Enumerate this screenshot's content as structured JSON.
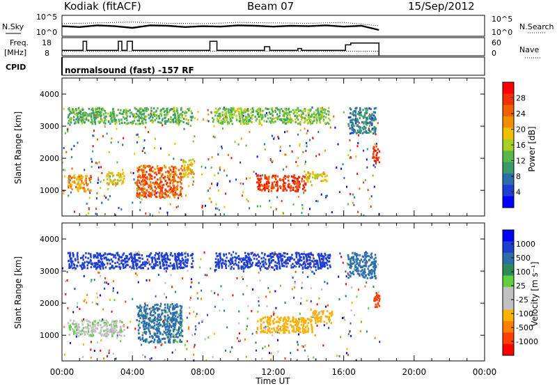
{
  "header": {
    "station": "Kodiak (fitACF)",
    "beam": "Beam 07",
    "date": "15/Sep/2012"
  },
  "summary_panels": {
    "nsky_label": "N.Sky",
    "nsky_ticks": [
      "10^5",
      "10^0"
    ],
    "nsearch_label": "N.Search",
    "nsearch_ticks": [
      "10^5",
      "10^0"
    ],
    "freq_label": "Freq.",
    "freq_unit": "[MHz]",
    "freq_ticks": [
      "18",
      "8"
    ],
    "nave_label": "Nave",
    "nave_ticks": [
      "60",
      "0"
    ],
    "cpid_label": "CPID",
    "cpid_text": "normalsound (fast) -157 RF"
  },
  "colors": {
    "power_scale": [
      "#0000ff",
      "#1f3fd0",
      "#2b6eaa",
      "#3a9a6a",
      "#5ab84a",
      "#a8d020",
      "#f0c000",
      "#f09000",
      "#f06000",
      "#f03000",
      "#ff0000"
    ],
    "velocity_scale": [
      "#ff0000",
      "#ff4000",
      "#ff8000",
      "#ffb000",
      "#c0c0c0",
      "#c0c0c0",
      "#60d040",
      "#2e8b57",
      "#2b6eaa",
      "#1f3fd0",
      "#0000ff"
    ]
  },
  "chart_data": [
    {
      "type": "line",
      "name": "nsky-nsearch-timeseries",
      "series": [
        {
          "name": "N.Sky",
          "style": "solid",
          "x_hours": [
            0.0,
            1.0,
            2.0,
            3.0,
            4.0,
            5.0,
            6.0,
            7.0,
            8.0,
            9.0,
            10.0,
            11.0,
            12.0,
            13.0,
            14.0,
            15.0,
            16.0,
            17.0,
            18.0
          ],
          "values_log10": [
            2.4,
            2.2,
            2.6,
            2.4,
            2.0,
            2.6,
            2.5,
            2.2,
            2.4,
            2.3,
            2.6,
            2.5,
            2.3,
            2.5,
            2.4,
            2.6,
            2.3,
            2.5,
            1.5
          ]
        },
        {
          "name": "N.Search",
          "style": "dotted",
          "x_hours": [
            0.0,
            2.0,
            4.0,
            6.0,
            8.0,
            10.0,
            12.0,
            14.0,
            16.0,
            18.0
          ],
          "values_log10": [
            3.0,
            3.2,
            3.4,
            3.1,
            3.0,
            3.3,
            3.2,
            3.1,
            3.3,
            2.5
          ]
        }
      ],
      "ticks": [
        "10^5",
        "10^0"
      ],
      "ylim": [
        0,
        5
      ]
    },
    {
      "type": "line",
      "name": "frequency-nave-timeseries",
      "series": [
        {
          "name": "Freq.",
          "style": "solid-step",
          "x_hours": [
            0.0,
            1.2,
            1.4,
            3.2,
            3.4,
            3.7,
            4.0,
            8.4,
            8.8,
            11.5,
            11.8,
            13.4,
            13.6,
            16.1,
            16.4,
            18.0
          ],
          "values_mhz": [
            11,
            16,
            11,
            16,
            11,
            16,
            11,
            16,
            11,
            13,
            11,
            12,
            11,
            14,
            15,
            13
          ]
        },
        {
          "name": "Nave",
          "style": "dotted",
          "x_hours": [
            0.0,
            18.0
          ],
          "values": [
            15,
            15
          ]
        }
      ],
      "freq_range": [
        8,
        18
      ],
      "nave_range": [
        0,
        60
      ]
    },
    {
      "type": "heatmap",
      "name": "power-range-time",
      "colorbar_label": "Power [dB]",
      "colorbar_ticks": [
        "28",
        "24",
        "20",
        "16",
        "12",
        "8",
        "4"
      ],
      "colorbar_range": [
        0,
        32
      ],
      "ylabel": "Slant Range [km]",
      "y_ticks": [
        "4000",
        "3000",
        "2000",
        "1000"
      ],
      "ylim": [
        200,
        4500
      ],
      "xlim_hours": [
        0,
        24
      ],
      "data_end_hours": 18,
      "regions": [
        {
          "t0": 0.3,
          "t1": 1.6,
          "r0": 1000,
          "r1": 1500,
          "level": 22
        },
        {
          "t0": 2.5,
          "t1": 3.5,
          "r0": 1200,
          "r1": 1600,
          "level": 18
        },
        {
          "t0": 4.2,
          "t1": 6.8,
          "r0": 800,
          "r1": 1800,
          "level": 26
        },
        {
          "t0": 6.8,
          "t1": 7.4,
          "r0": 1400,
          "r1": 2000,
          "level": 20
        },
        {
          "t0": 11.0,
          "t1": 13.8,
          "r0": 1000,
          "r1": 1500,
          "level": 28
        },
        {
          "t0": 13.8,
          "t1": 15.0,
          "r0": 1300,
          "r1": 1600,
          "level": 18
        },
        {
          "t0": 0.3,
          "t1": 7.4,
          "r0": 3100,
          "r1": 3600,
          "level": 12
        },
        {
          "t0": 8.5,
          "t1": 15.2,
          "r0": 3100,
          "r1": 3600,
          "level": 14
        },
        {
          "t0": 16.2,
          "t1": 17.8,
          "r0": 2800,
          "r1": 3600,
          "level": 8
        },
        {
          "t0": 17.6,
          "t1": 18.0,
          "r0": 1900,
          "r1": 2400,
          "level": 30
        }
      ]
    },
    {
      "type": "heatmap",
      "name": "velocity-range-time",
      "colorbar_label": "Velocity [m s⁻¹]",
      "colorbar_ticks": [
        "1000",
        "500",
        "100",
        "25",
        "-25",
        "-100",
        "-500",
        "-1000"
      ],
      "ylabel": "Slant Range [km]",
      "y_ticks": [
        "4000",
        "3000",
        "2000",
        "1000"
      ],
      "ylim": [
        200,
        4500
      ],
      "xlabel": "Time UT",
      "x_ticks": [
        "00:00",
        "04:00",
        "08:00",
        "12:00",
        "16:00",
        "20:00",
        "00:00"
      ],
      "xlim_hours": [
        0,
        24
      ],
      "data_end_hours": 18,
      "regions": [
        {
          "t0": 0.3,
          "t1": 3.5,
          "r0": 1000,
          "r1": 1500,
          "level": 0
        },
        {
          "t0": 4.2,
          "t1": 6.8,
          "r0": 800,
          "r1": 2000,
          "level": 150
        },
        {
          "t0": 11.0,
          "t1": 14.2,
          "r0": 1100,
          "r1": 1600,
          "level": -200
        },
        {
          "t0": 14.2,
          "t1": 15.3,
          "r0": 1400,
          "r1": 1800,
          "level": -150
        },
        {
          "t0": 0.3,
          "t1": 7.4,
          "r0": 3100,
          "r1": 3600,
          "level": 600
        },
        {
          "t0": 8.5,
          "t1": 15.2,
          "r0": 3100,
          "r1": 3600,
          "level": 700
        },
        {
          "t0": 16.2,
          "t1": 17.8,
          "r0": 2800,
          "r1": 3600,
          "level": 300
        },
        {
          "t0": 17.6,
          "t1": 18.0,
          "r0": 1900,
          "r1": 2400,
          "level": -800
        }
      ]
    }
  ]
}
